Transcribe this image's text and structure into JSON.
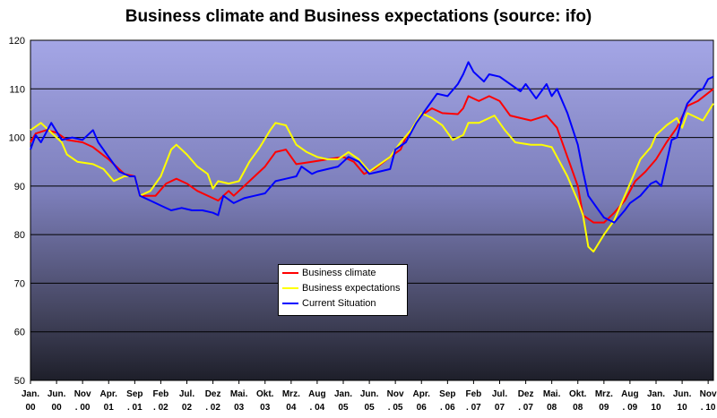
{
  "chart_data": {
    "type": "line",
    "title": "Business climate and Business expectations (source: ifo)",
    "xlabel": "",
    "ylabel": "",
    "ylim": [
      50,
      120
    ],
    "yticks": [
      50,
      60,
      70,
      80,
      90,
      100,
      110,
      120
    ],
    "xlim": [
      2000.0,
      2010.917
    ],
    "grid": "horizontal",
    "plot_background": "gradient: #9fa0e0 (top) to #222233 (bottom)",
    "legend_position": "bottom-center",
    "x_tick_labels": [
      {
        "x": 2000.0,
        "top": "Jan.",
        "bottom": "00"
      },
      {
        "x": 2000.417,
        "top": "Jun.",
        "bottom": "00"
      },
      {
        "x": 2000.833,
        "top": "Nov",
        "bottom": ". 00"
      },
      {
        "x": 2001.25,
        "top": "Apr.",
        "bottom": "01"
      },
      {
        "x": 2001.667,
        "top": "Sep",
        "bottom": ". 01"
      },
      {
        "x": 2002.083,
        "top": "Feb",
        "bottom": ". 02"
      },
      {
        "x": 2002.5,
        "top": "Jul.",
        "bottom": "02"
      },
      {
        "x": 2002.917,
        "top": "Dez",
        "bottom": ". 02"
      },
      {
        "x": 2003.333,
        "top": "Mai.",
        "bottom": "03"
      },
      {
        "x": 2003.75,
        "top": "Okt.",
        "bottom": "03"
      },
      {
        "x": 2004.167,
        "top": "Mrz.",
        "bottom": "04"
      },
      {
        "x": 2004.583,
        "top": "Aug",
        "bottom": ". 04"
      },
      {
        "x": 2005.0,
        "top": "Jan.",
        "bottom": "05"
      },
      {
        "x": 2005.417,
        "top": "Jun.",
        "bottom": "05"
      },
      {
        "x": 2005.833,
        "top": "Nov",
        "bottom": ". 05"
      },
      {
        "x": 2006.25,
        "top": "Apr.",
        "bottom": "06"
      },
      {
        "x": 2006.667,
        "top": "Sep",
        "bottom": ". 06"
      },
      {
        "x": 2007.083,
        "top": "Feb",
        "bottom": ". 07"
      },
      {
        "x": 2007.5,
        "top": "Jul.",
        "bottom": "07"
      },
      {
        "x": 2007.917,
        "top": "Dez",
        "bottom": ". 07"
      },
      {
        "x": 2008.333,
        "top": "Mai.",
        "bottom": "08"
      },
      {
        "x": 2008.75,
        "top": "Okt.",
        "bottom": "08"
      },
      {
        "x": 2009.167,
        "top": "Mrz.",
        "bottom": "09"
      },
      {
        "x": 2009.583,
        "top": "Aug",
        "bottom": ". 09"
      },
      {
        "x": 2010.0,
        "top": "Jan.",
        "bottom": "10"
      },
      {
        "x": 2010.417,
        "top": "Jun.",
        "bottom": "10"
      },
      {
        "x": 2010.833,
        "top": "Nov",
        "bottom": ". 10"
      }
    ],
    "series": [
      {
        "name": "Business climate",
        "color": "#ff0000",
        "points": [
          [
            2000.0,
            99.0
          ],
          [
            2000.083,
            100.8
          ],
          [
            2000.25,
            101.5
          ],
          [
            2000.417,
            101.0
          ],
          [
            2000.583,
            99.5
          ],
          [
            2000.833,
            99.0
          ],
          [
            2001.0,
            98.0
          ],
          [
            2001.25,
            95.5
          ],
          [
            2001.5,
            92.5
          ],
          [
            2001.667,
            92.0
          ],
          [
            2001.75,
            88.0
          ],
          [
            2002.0,
            88.0
          ],
          [
            2002.167,
            90.5
          ],
          [
            2002.333,
            91.5
          ],
          [
            2002.5,
            90.5
          ],
          [
            2002.667,
            89.0
          ],
          [
            2002.917,
            87.5
          ],
          [
            2003.0,
            87.0
          ],
          [
            2003.167,
            89.0
          ],
          [
            2003.25,
            88.0
          ],
          [
            2003.5,
            91.0
          ],
          [
            2003.75,
            94.0
          ],
          [
            2003.917,
            97.0
          ],
          [
            2004.083,
            97.5
          ],
          [
            2004.25,
            94.5
          ],
          [
            2004.5,
            95.0
          ],
          [
            2004.75,
            95.5
          ],
          [
            2005.0,
            96.0
          ],
          [
            2005.167,
            95.0
          ],
          [
            2005.333,
            92.5
          ],
          [
            2005.5,
            93.5
          ],
          [
            2005.75,
            96.0
          ],
          [
            2005.917,
            97.5
          ],
          [
            2006.0,
            100.0
          ],
          [
            2006.25,
            104.5
          ],
          [
            2006.417,
            106.0
          ],
          [
            2006.583,
            105.0
          ],
          [
            2006.833,
            104.8
          ],
          [
            2006.917,
            106.0
          ],
          [
            2007.0,
            108.5
          ],
          [
            2007.167,
            107.5
          ],
          [
            2007.333,
            108.5
          ],
          [
            2007.5,
            107.5
          ],
          [
            2007.667,
            104.5
          ],
          [
            2007.833,
            104.0
          ],
          [
            2008.0,
            103.5
          ],
          [
            2008.25,
            104.5
          ],
          [
            2008.417,
            102.0
          ],
          [
            2008.583,
            96.0
          ],
          [
            2008.75,
            90.0
          ],
          [
            2008.833,
            84.0
          ],
          [
            2009.0,
            82.5
          ],
          [
            2009.167,
            82.5
          ],
          [
            2009.333,
            84.5
          ],
          [
            2009.5,
            87.0
          ],
          [
            2009.667,
            91.0
          ],
          [
            2009.833,
            93.0
          ],
          [
            2010.0,
            95.5
          ],
          [
            2010.167,
            99.0
          ],
          [
            2010.333,
            102.0
          ],
          [
            2010.5,
            106.5
          ],
          [
            2010.667,
            107.5
          ],
          [
            2010.917,
            110.0
          ]
        ]
      },
      {
        "name": "Business expectations",
        "color": "#ffff00",
        "points": [
          [
            2000.0,
            101.5
          ],
          [
            2000.167,
            103.0
          ],
          [
            2000.333,
            101.0
          ],
          [
            2000.5,
            99.0
          ],
          [
            2000.583,
            96.5
          ],
          [
            2000.75,
            95.0
          ],
          [
            2001.0,
            94.5
          ],
          [
            2001.167,
            93.5
          ],
          [
            2001.333,
            91.0
          ],
          [
            2001.5,
            92.0
          ],
          [
            2001.667,
            92.0
          ],
          [
            2001.75,
            88.0
          ],
          [
            2001.917,
            89.0
          ],
          [
            2002.083,
            92.0
          ],
          [
            2002.25,
            97.5
          ],
          [
            2002.333,
            98.5
          ],
          [
            2002.5,
            96.5
          ],
          [
            2002.667,
            94.0
          ],
          [
            2002.833,
            92.5
          ],
          [
            2002.917,
            89.5
          ],
          [
            2003.0,
            91.0
          ],
          [
            2003.167,
            90.5
          ],
          [
            2003.333,
            91.0
          ],
          [
            2003.5,
            95.0
          ],
          [
            2003.667,
            98.0
          ],
          [
            2003.833,
            101.5
          ],
          [
            2003.917,
            103.0
          ],
          [
            2004.083,
            102.5
          ],
          [
            2004.25,
            98.5
          ],
          [
            2004.417,
            97.0
          ],
          [
            2004.583,
            96.0
          ],
          [
            2004.75,
            95.5
          ],
          [
            2004.917,
            95.5
          ],
          [
            2005.083,
            97.0
          ],
          [
            2005.25,
            95.5
          ],
          [
            2005.417,
            93.0
          ],
          [
            2005.583,
            94.5
          ],
          [
            2005.75,
            96.0
          ],
          [
            2005.917,
            99.0
          ],
          [
            2006.083,
            101.5
          ],
          [
            2006.25,
            105.0
          ],
          [
            2006.417,
            104.0
          ],
          [
            2006.583,
            102.5
          ],
          [
            2006.75,
            99.5
          ],
          [
            2006.917,
            100.5
          ],
          [
            2007.0,
            103.0
          ],
          [
            2007.167,
            103.0
          ],
          [
            2007.333,
            104.0
          ],
          [
            2007.417,
            104.5
          ],
          [
            2007.583,
            101.5
          ],
          [
            2007.75,
            99.0
          ],
          [
            2008.0,
            98.5
          ],
          [
            2008.167,
            98.5
          ],
          [
            2008.333,
            98.0
          ],
          [
            2008.417,
            96.0
          ],
          [
            2008.583,
            92.0
          ],
          [
            2008.75,
            87.0
          ],
          [
            2008.833,
            84.0
          ],
          [
            2008.917,
            77.5
          ],
          [
            2009.0,
            76.5
          ],
          [
            2009.167,
            80.0
          ],
          [
            2009.333,
            83.0
          ],
          [
            2009.5,
            88.0
          ],
          [
            2009.583,
            90.5
          ],
          [
            2009.75,
            95.5
          ],
          [
            2009.917,
            98.0
          ],
          [
            2010.0,
            100.5
          ],
          [
            2010.167,
            102.5
          ],
          [
            2010.333,
            104.0
          ],
          [
            2010.417,
            102.0
          ],
          [
            2010.5,
            105.0
          ],
          [
            2010.667,
            104.0
          ],
          [
            2010.75,
            103.5
          ],
          [
            2010.917,
            107.0
          ]
        ]
      },
      {
        "name": "Current Situation",
        "color": "#0000ff",
        "points": [
          [
            2000.0,
            97.5
          ],
          [
            2000.083,
            100.5
          ],
          [
            2000.167,
            99.0
          ],
          [
            2000.333,
            103.0
          ],
          [
            2000.5,
            99.5
          ],
          [
            2000.667,
            100.0
          ],
          [
            2000.833,
            99.5
          ],
          [
            2001.0,
            101.5
          ],
          [
            2001.083,
            99.0
          ],
          [
            2001.25,
            96.0
          ],
          [
            2001.417,
            93.0
          ],
          [
            2001.583,
            92.0
          ],
          [
            2001.667,
            92.0
          ],
          [
            2001.75,
            88.0
          ],
          [
            2001.917,
            87.0
          ],
          [
            2002.083,
            86.0
          ],
          [
            2002.25,
            85.0
          ],
          [
            2002.417,
            85.5
          ],
          [
            2002.583,
            85.0
          ],
          [
            2002.75,
            85.0
          ],
          [
            2002.917,
            84.5
          ],
          [
            2003.0,
            84.0
          ],
          [
            2003.083,
            88.0
          ],
          [
            2003.25,
            86.5
          ],
          [
            2003.417,
            87.5
          ],
          [
            2003.583,
            88.0
          ],
          [
            2003.75,
            88.5
          ],
          [
            2003.917,
            91.0
          ],
          [
            2004.083,
            91.5
          ],
          [
            2004.25,
            92.0
          ],
          [
            2004.333,
            94.0
          ],
          [
            2004.5,
            92.5
          ],
          [
            2004.583,
            93.0
          ],
          [
            2004.75,
            93.5
          ],
          [
            2004.917,
            94.0
          ],
          [
            2005.083,
            96.0
          ],
          [
            2005.25,
            95.0
          ],
          [
            2005.417,
            92.5
          ],
          [
            2005.583,
            93.0
          ],
          [
            2005.75,
            93.5
          ],
          [
            2005.833,
            97.5
          ],
          [
            2006.0,
            99.0
          ],
          [
            2006.167,
            103.0
          ],
          [
            2006.333,
            106.0
          ],
          [
            2006.5,
            109.0
          ],
          [
            2006.667,
            108.5
          ],
          [
            2006.833,
            111.0
          ],
          [
            2006.917,
            113.0
          ],
          [
            2007.0,
            115.5
          ],
          [
            2007.083,
            113.5
          ],
          [
            2007.25,
            111.5
          ],
          [
            2007.333,
            113.0
          ],
          [
            2007.5,
            112.5
          ],
          [
            2007.667,
            111.0
          ],
          [
            2007.833,
            109.5
          ],
          [
            2007.917,
            111.0
          ],
          [
            2008.083,
            108.0
          ],
          [
            2008.25,
            111.0
          ],
          [
            2008.333,
            108.5
          ],
          [
            2008.417,
            110.0
          ],
          [
            2008.583,
            105.0
          ],
          [
            2008.75,
            98.5
          ],
          [
            2008.833,
            93.0
          ],
          [
            2008.917,
            88.0
          ],
          [
            2009.083,
            85.0
          ],
          [
            2009.167,
            83.5
          ],
          [
            2009.333,
            82.5
          ],
          [
            2009.5,
            85.0
          ],
          [
            2009.583,
            86.5
          ],
          [
            2009.75,
            88.0
          ],
          [
            2009.917,
            90.5
          ],
          [
            2010.0,
            91.0
          ],
          [
            2010.083,
            90.0
          ],
          [
            2010.25,
            99.5
          ],
          [
            2010.333,
            100.0
          ],
          [
            2010.417,
            104.0
          ],
          [
            2010.5,
            107.0
          ],
          [
            2010.667,
            109.5
          ],
          [
            2010.75,
            110.0
          ],
          [
            2010.833,
            112.0
          ],
          [
            2010.917,
            112.5
          ]
        ]
      }
    ]
  }
}
